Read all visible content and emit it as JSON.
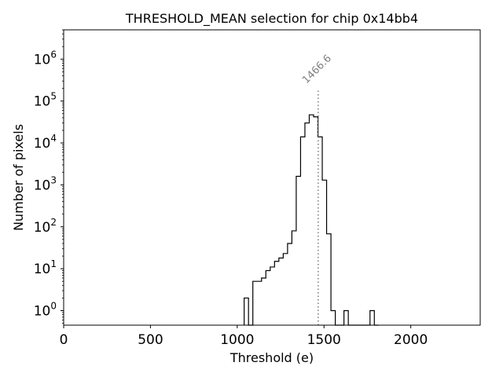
{
  "chart_data": {
    "type": "histogram",
    "title": "THRESHOLD_MEAN selection for chip 0x14bb4",
    "xlabel": "Threshold (e)",
    "ylabel": "Number of pixels",
    "xlim": [
      0,
      2400
    ],
    "ylim": [
      0.45,
      5000000
    ],
    "yscale": "log",
    "grid": false,
    "x_ticks": [
      {
        "value": 0,
        "label": "0"
      },
      {
        "value": 500,
        "label": "500"
      },
      {
        "value": 1000,
        "label": "1000"
      },
      {
        "value": 1500,
        "label": "1500"
      },
      {
        "value": 2000,
        "label": "2000"
      }
    ],
    "y_ticks": [
      {
        "value": 1,
        "base": "10",
        "exp": "0"
      },
      {
        "value": 10,
        "base": "10",
        "exp": "1"
      },
      {
        "value": 100,
        "base": "10",
        "exp": "2"
      },
      {
        "value": 1000,
        "base": "10",
        "exp": "3"
      },
      {
        "value": 10000,
        "base": "10",
        "exp": "4"
      },
      {
        "value": 100000,
        "base": "10",
        "exp": "5"
      },
      {
        "value": 1000000,
        "base": "10",
        "exp": "6"
      }
    ],
    "bin_width": 25,
    "bins": [
      {
        "x": 1040,
        "count": 2
      },
      {
        "x": 1065,
        "count": 0
      },
      {
        "x": 1090,
        "count": 5
      },
      {
        "x": 1115,
        "count": 5
      },
      {
        "x": 1140,
        "count": 6
      },
      {
        "x": 1165,
        "count": 9
      },
      {
        "x": 1190,
        "count": 11
      },
      {
        "x": 1215,
        "count": 15
      },
      {
        "x": 1240,
        "count": 18
      },
      {
        "x": 1265,
        "count": 23
      },
      {
        "x": 1290,
        "count": 40
      },
      {
        "x": 1315,
        "count": 80
      },
      {
        "x": 1340,
        "count": 1600
      },
      {
        "x": 1365,
        "count": 14000
      },
      {
        "x": 1390,
        "count": 30000
      },
      {
        "x": 1415,
        "count": 47000
      },
      {
        "x": 1440,
        "count": 42000
      },
      {
        "x": 1465,
        "count": 14000
      },
      {
        "x": 1490,
        "count": 1300
      },
      {
        "x": 1515,
        "count": 68
      },
      {
        "x": 1540,
        "count": 1
      },
      {
        "x": 1565,
        "count": 0
      },
      {
        "x": 1590,
        "count": 0
      },
      {
        "x": 1615,
        "count": 1
      },
      {
        "x": 1640,
        "count": 0
      },
      {
        "x": 1665,
        "count": 0
      },
      {
        "x": 1690,
        "count": 0
      },
      {
        "x": 1715,
        "count": 0
      },
      {
        "x": 1740,
        "count": 0
      },
      {
        "x": 1765,
        "count": 1
      },
      {
        "x": 1790,
        "count": 0
      }
    ],
    "line_color": "#000000",
    "annotation": {
      "x": 1466.6,
      "label": "1466.6",
      "y_top": 180000,
      "color": "#808080",
      "style": "dotted"
    }
  }
}
